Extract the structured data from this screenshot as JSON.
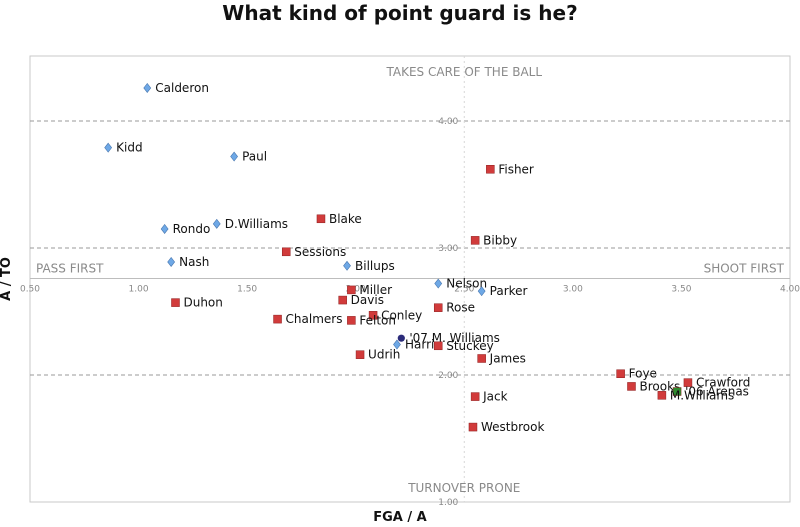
{
  "chart_data": {
    "type": "scatter",
    "title": "What kind of point guard is he?",
    "xlabel": "FGA / A",
    "ylabel": "A / TO",
    "xlim": [
      0.5,
      4.0
    ],
    "ylim": [
      1.0,
      4.5
    ],
    "x_ticks": [
      "0.50",
      "1.00",
      "1.50",
      "2.00",
      "2.50",
      "3.00",
      "3.50",
      "4.00"
    ],
    "x_tick_values": [
      0.5,
      1.0,
      1.5,
      2.0,
      2.5,
      3.0,
      3.5,
      4.0
    ],
    "y_ticks": [
      "1.00",
      "2.00",
      "3.00",
      "4.00"
    ],
    "y_tick_values": [
      1.0,
      2.0,
      3.0,
      4.0
    ],
    "crosshair": {
      "x": 2.5,
      "y": 3.0
    },
    "quadrant_labels": {
      "top": "TAKES CARE OF THE BALL",
      "bottom": "TURNOVER PRONE",
      "left": "PASS FIRST",
      "right": "SHOOT FIRST"
    },
    "colors": {
      "blue": "#6ea8e6",
      "red": "#d13b3b",
      "navy": "#2b2b7a",
      "green": "#2e8b2e",
      "grid": "#9a9a9a"
    },
    "points": [
      {
        "name": "Calderon",
        "x": 1.04,
        "y": 4.26,
        "color": "blue",
        "shape": "diamond"
      },
      {
        "name": "Kidd",
        "x": 0.86,
        "y": 3.79,
        "color": "blue",
        "shape": "diamond"
      },
      {
        "name": "Paul",
        "x": 1.44,
        "y": 3.72,
        "color": "blue",
        "shape": "diamond"
      },
      {
        "name": "Fisher",
        "x": 2.62,
        "y": 3.62,
        "color": "red",
        "shape": "square"
      },
      {
        "name": "Blake",
        "x": 1.84,
        "y": 3.23,
        "color": "red",
        "shape": "square"
      },
      {
        "name": "D.Williams",
        "x": 1.36,
        "y": 3.19,
        "color": "blue",
        "shape": "diamond"
      },
      {
        "name": "Rondo",
        "x": 1.12,
        "y": 3.15,
        "color": "blue",
        "shape": "diamond"
      },
      {
        "name": "Bibby",
        "x": 2.55,
        "y": 3.06,
        "color": "red",
        "shape": "square"
      },
      {
        "name": "Sessions",
        "x": 1.68,
        "y": 2.97,
        "color": "red",
        "shape": "square"
      },
      {
        "name": "Nash",
        "x": 1.15,
        "y": 2.89,
        "color": "blue",
        "shape": "diamond"
      },
      {
        "name": "Billups",
        "x": 1.96,
        "y": 2.86,
        "color": "blue",
        "shape": "diamond"
      },
      {
        "name": "Nelson",
        "x": 2.38,
        "y": 2.72,
        "color": "blue",
        "shape": "diamond"
      },
      {
        "name": "Miller",
        "x": 1.98,
        "y": 2.67,
        "color": "red",
        "shape": "square"
      },
      {
        "name": "Parker",
        "x": 2.58,
        "y": 2.66,
        "color": "blue",
        "shape": "diamond"
      },
      {
        "name": "Davis",
        "x": 1.94,
        "y": 2.59,
        "color": "red",
        "shape": "square"
      },
      {
        "name": "Duhon",
        "x": 1.17,
        "y": 2.57,
        "color": "red",
        "shape": "square"
      },
      {
        "name": "Rose",
        "x": 2.38,
        "y": 2.53,
        "color": "red",
        "shape": "square"
      },
      {
        "name": "Conley",
        "x": 2.08,
        "y": 2.47,
        "color": "red",
        "shape": "square"
      },
      {
        "name": "Chalmers",
        "x": 1.64,
        "y": 2.44,
        "color": "red",
        "shape": "square"
      },
      {
        "name": "Felton",
        "x": 1.98,
        "y": 2.43,
        "color": "red",
        "shape": "square"
      },
      {
        "name": "'07 M. Williams",
        "x": 2.21,
        "y": 2.29,
        "color": "navy",
        "shape": "circle"
      },
      {
        "name": "Harris",
        "x": 2.19,
        "y": 2.24,
        "color": "blue",
        "shape": "diamond"
      },
      {
        "name": "Stuckey",
        "x": 2.38,
        "y": 2.23,
        "color": "red",
        "shape": "square"
      },
      {
        "name": "Udrih",
        "x": 2.02,
        "y": 2.16,
        "color": "red",
        "shape": "square"
      },
      {
        "name": "James",
        "x": 2.58,
        "y": 2.13,
        "color": "red",
        "shape": "square"
      },
      {
        "name": "Foye",
        "x": 3.22,
        "y": 2.01,
        "color": "red",
        "shape": "square"
      },
      {
        "name": "Crawford",
        "x": 3.53,
        "y": 1.94,
        "color": "red",
        "shape": "square"
      },
      {
        "name": "Brooks",
        "x": 3.27,
        "y": 1.91,
        "color": "red",
        "shape": "square"
      },
      {
        "name": "'06 Arenas",
        "x": 3.48,
        "y": 1.87,
        "color": "green",
        "shape": "square"
      },
      {
        "name": "M.Williams",
        "x": 3.41,
        "y": 1.84,
        "color": "red",
        "shape": "square"
      },
      {
        "name": "Jack",
        "x": 2.55,
        "y": 1.83,
        "color": "red",
        "shape": "square"
      },
      {
        "name": "Westbrook",
        "x": 2.54,
        "y": 1.59,
        "color": "red",
        "shape": "square"
      }
    ]
  }
}
